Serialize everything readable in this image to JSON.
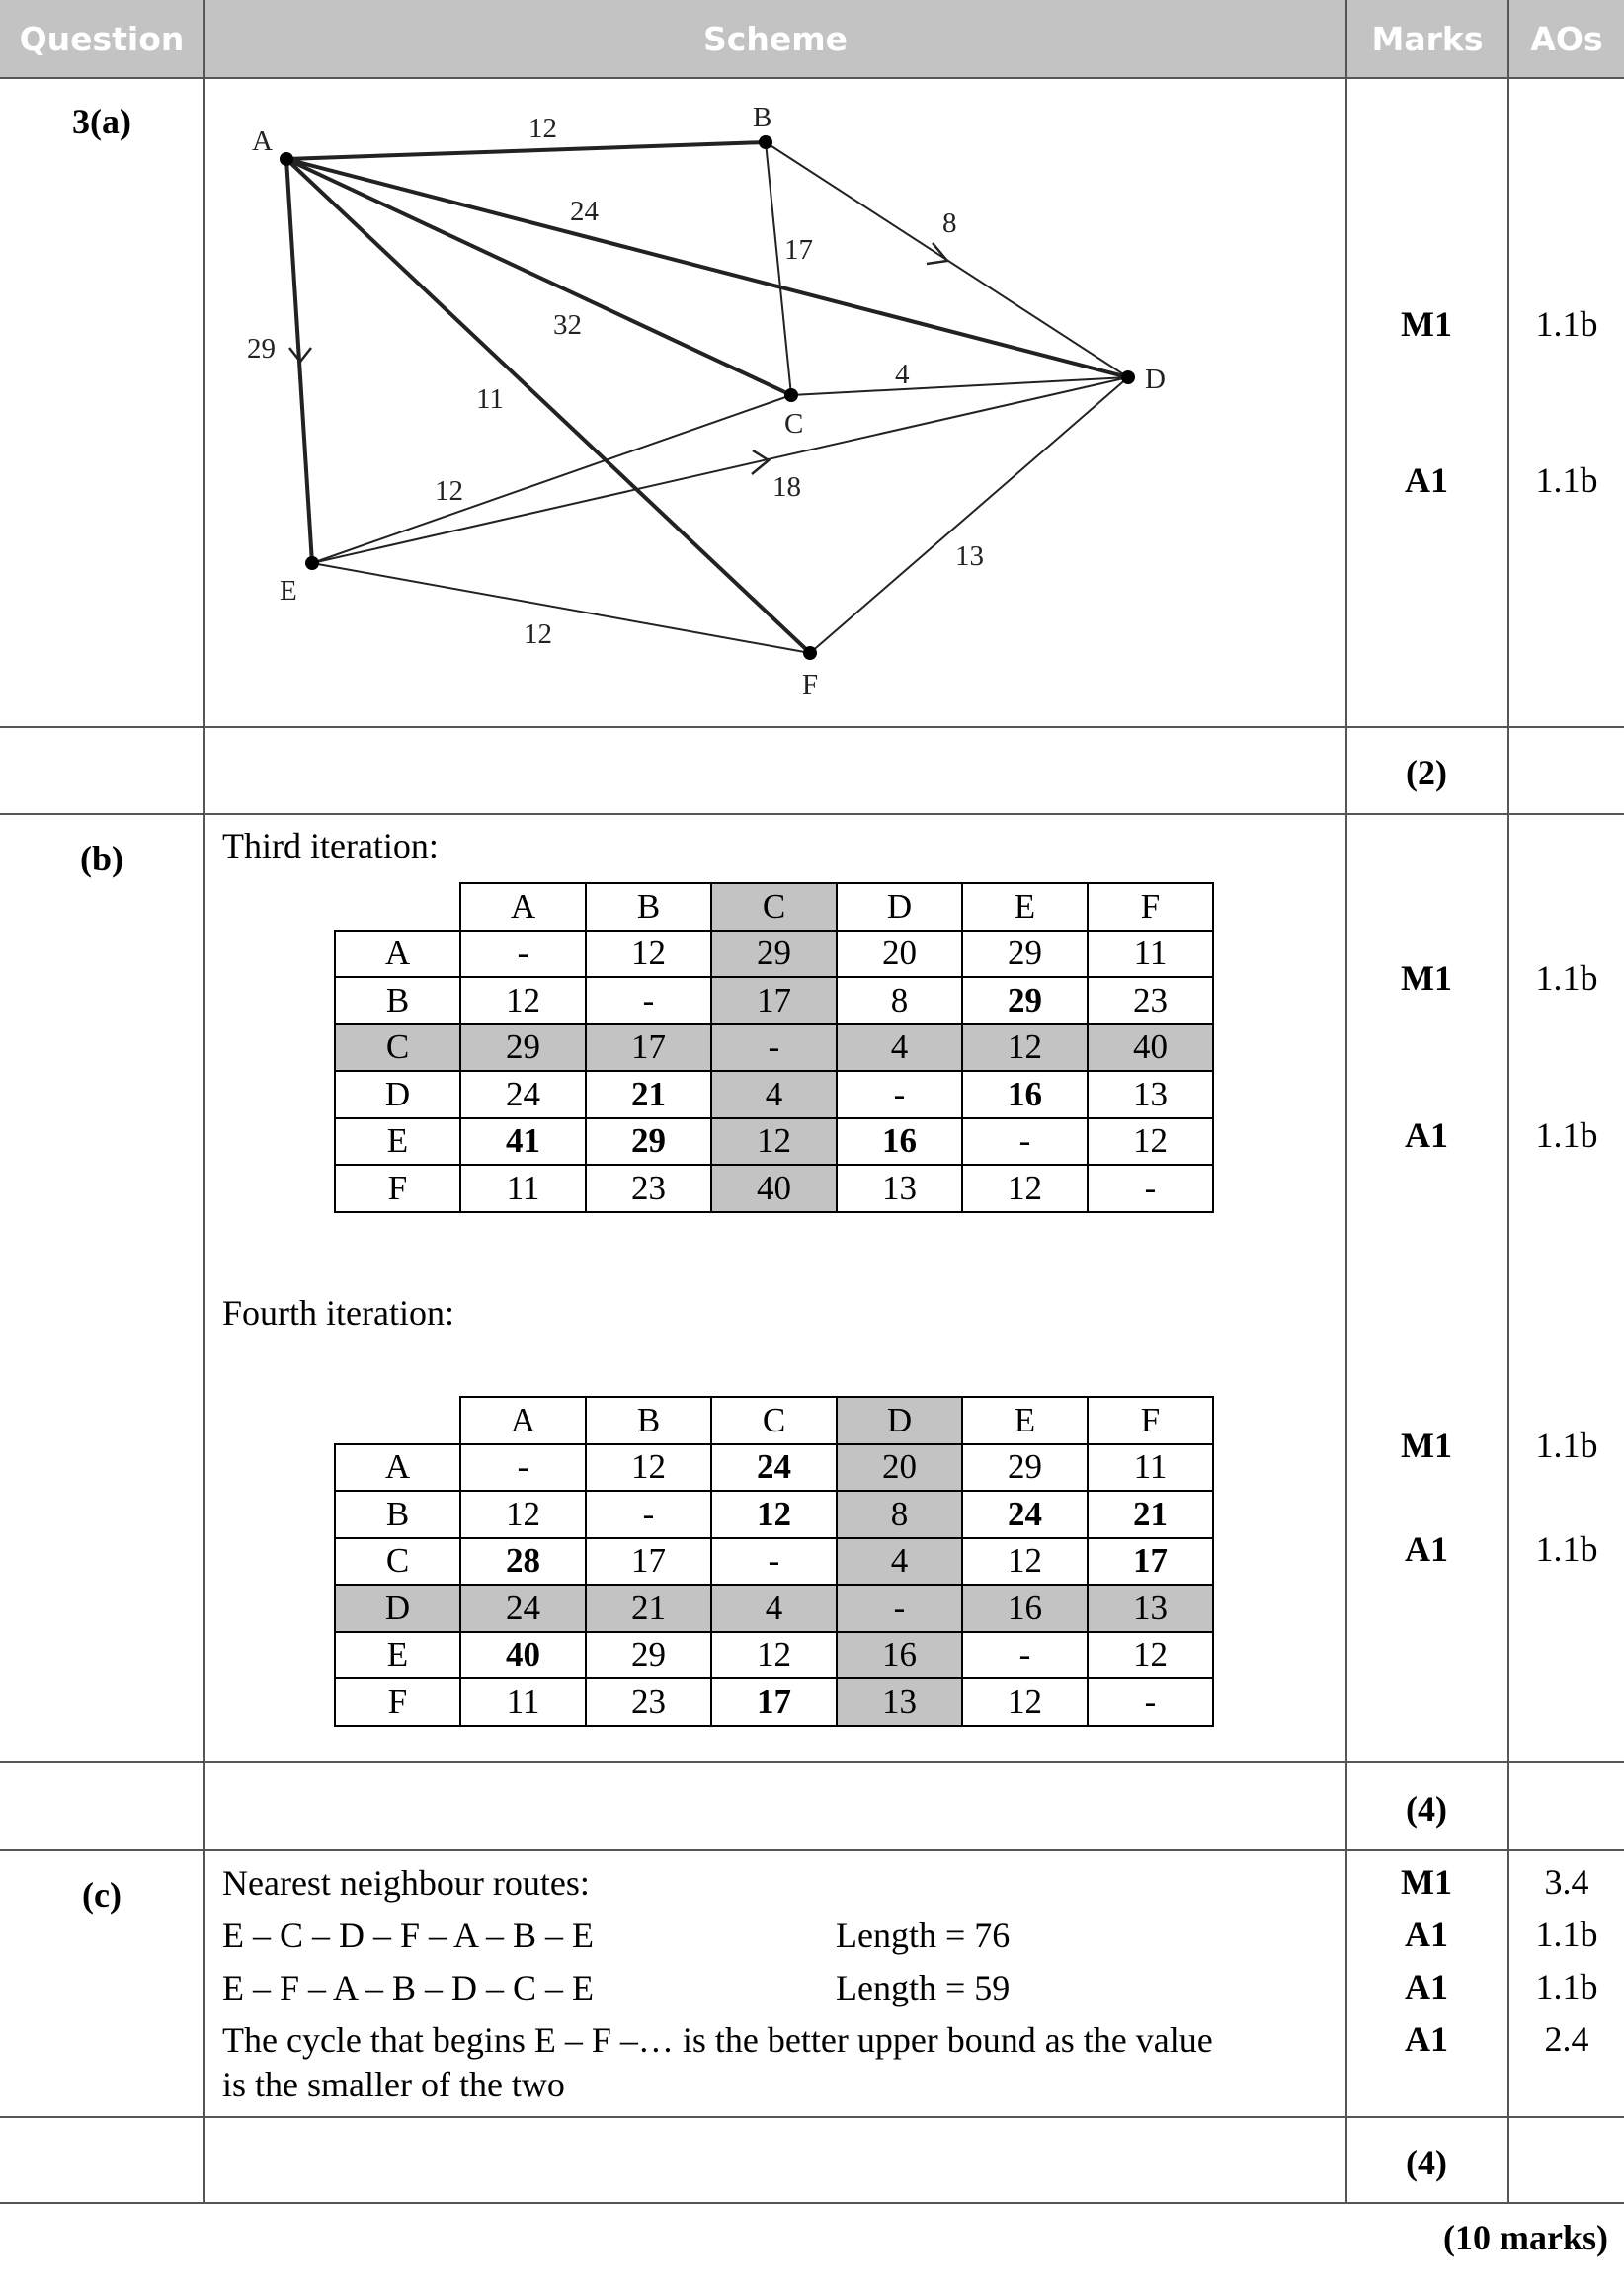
{
  "header": {
    "question": "Question",
    "scheme": "Scheme",
    "marks": "Marks",
    "aos": "AOs"
  },
  "part_a": {
    "label": "3(a)",
    "marks": [
      {
        "mark": "M1",
        "ao": "1.1b"
      },
      {
        "mark": "A1",
        "ao": "1.1b"
      }
    ],
    "total": "(2)",
    "graph": {
      "nodes": [
        "A",
        "B",
        "C",
        "D",
        "E",
        "F"
      ],
      "edges": [
        {
          "from": "A",
          "to": "B",
          "weight": "12"
        },
        {
          "from": "A",
          "to": "D",
          "weight": "24"
        },
        {
          "from": "A",
          "to": "C",
          "weight": "32"
        },
        {
          "from": "A",
          "to": "F",
          "weight": "11"
        },
        {
          "from": "A",
          "to": "E",
          "weight": "29"
        },
        {
          "from": "B",
          "to": "C",
          "weight": "17"
        },
        {
          "from": "B",
          "to": "D",
          "weight": "8"
        },
        {
          "from": "C",
          "to": "D",
          "weight": "4"
        },
        {
          "from": "C",
          "to": "E",
          "weight": "12"
        },
        {
          "from": "E",
          "to": "D",
          "weight": "18"
        },
        {
          "from": "D",
          "to": "F",
          "weight": "13"
        },
        {
          "from": "E",
          "to": "F",
          "weight": "12"
        }
      ]
    }
  },
  "part_b": {
    "label": "(b)",
    "third_title": "Third iteration:",
    "fourth_title": "Fourth iteration:",
    "columns": [
      "A",
      "B",
      "C",
      "D",
      "E",
      "F"
    ],
    "third": {
      "rows": [
        [
          "A",
          "-",
          "12",
          "29",
          "20",
          "29",
          "11"
        ],
        [
          "B",
          "12",
          "-",
          "17",
          "8",
          "29",
          "23"
        ],
        [
          "C",
          "29",
          "17",
          "-",
          "4",
          "12",
          "40"
        ],
        [
          "D",
          "24",
          "21",
          "4",
          "-",
          "16",
          "13"
        ],
        [
          "E",
          "41",
          "29",
          "12",
          "16",
          "-",
          "12"
        ],
        [
          "F",
          "11",
          "23",
          "40",
          "13",
          "12",
          "-"
        ]
      ]
    },
    "fourth": {
      "rows": [
        [
          "A",
          "-",
          "12",
          "24",
          "20",
          "29",
          "11"
        ],
        [
          "B",
          "12",
          "-",
          "12",
          "8",
          "24",
          "21"
        ],
        [
          "C",
          "28",
          "17",
          "-",
          "4",
          "12",
          "17"
        ],
        [
          "D",
          "24",
          "21",
          "4",
          "-",
          "16",
          "13"
        ],
        [
          "E",
          "40",
          "29",
          "12",
          "16",
          "-",
          "12"
        ],
        [
          "F",
          "11",
          "23",
          "17",
          "13",
          "12",
          "-"
        ]
      ]
    },
    "marks": [
      {
        "mark": "M1",
        "ao": "1.1b"
      },
      {
        "mark": "A1",
        "ao": "1.1b"
      },
      {
        "mark": "M1",
        "ao": "1.1b"
      },
      {
        "mark": "A1",
        "ao": "1.1b"
      }
    ],
    "total": "(4)"
  },
  "part_c": {
    "label": "(c)",
    "heading": "Nearest neighbour routes:",
    "route1": "E – C – D – F – A – B – E",
    "length1": "Length = 76",
    "route2": "E – F – A – B – D – C – E",
    "length2": "Length = 59",
    "conclusion1": "The cycle that begins E – F –… is the better upper bound as the value",
    "conclusion2": "is the smaller of the two",
    "marks": [
      {
        "mark": "M1",
        "ao": "3.4"
      },
      {
        "mark": "A1",
        "ao": "1.1b"
      },
      {
        "mark": "A1",
        "ao": "1.1b"
      },
      {
        "mark": "A1",
        "ao": "2.4"
      }
    ],
    "total": "(4)"
  },
  "grand_total": "(10 marks)"
}
